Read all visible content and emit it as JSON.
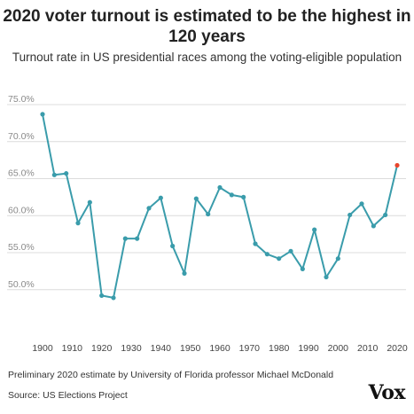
{
  "header": {
    "title": "2020 voter turnout is estimated to be the highest in 120 years",
    "subtitle": "Turnout rate in US presidential races among the voting-eligible population"
  },
  "chart_data": {
    "type": "line",
    "x": [
      1900,
      1904,
      1908,
      1912,
      1916,
      1920,
      1924,
      1928,
      1932,
      1936,
      1940,
      1944,
      1948,
      1952,
      1956,
      1960,
      1964,
      1968,
      1972,
      1976,
      1980,
      1984,
      1988,
      1992,
      1996,
      2000,
      2004,
      2008,
      2012,
      2016,
      2020
    ],
    "series": [
      {
        "values": [
          73.7,
          65.5,
          65.7,
          59.0,
          61.8,
          49.2,
          48.9,
          56.9,
          56.9,
          61.0,
          62.4,
          55.9,
          52.2,
          62.3,
          60.2,
          63.8,
          62.8,
          62.5,
          56.2,
          54.8,
          54.2,
          55.2,
          52.8,
          58.1,
          51.7,
          54.2,
          60.1,
          61.6,
          58.6,
          60.1,
          66.8
        ]
      }
    ],
    "highlight": {
      "x": 2020,
      "value": 66.8,
      "color": "#e8452c"
    },
    "line_color": "#3a9cab",
    "ytick_labels": [
      "75.0%",
      "70.0%",
      "65.0%",
      "60.0%",
      "55.0%",
      "50.0%"
    ],
    "ytick_values": [
      75,
      70,
      65,
      60,
      55,
      50
    ],
    "xtick_labels": [
      "1900",
      "1910",
      "1920",
      "1930",
      "1940",
      "1950",
      "1960",
      "1970",
      "1980",
      "1990",
      "2000",
      "2010",
      "2020"
    ],
    "xtick_values": [
      1900,
      1910,
      1920,
      1930,
      1940,
      1950,
      1960,
      1970,
      1980,
      1990,
      2000,
      2010,
      2020
    ],
    "xlim": [
      1900,
      2020
    ],
    "ylim": [
      45,
      75
    ],
    "grid": true
  },
  "footer": {
    "note": "Preliminary 2020 estimate by University of Florida professor Michael McDonald",
    "source": "Source: US Elections Project",
    "logo": "Vox"
  }
}
